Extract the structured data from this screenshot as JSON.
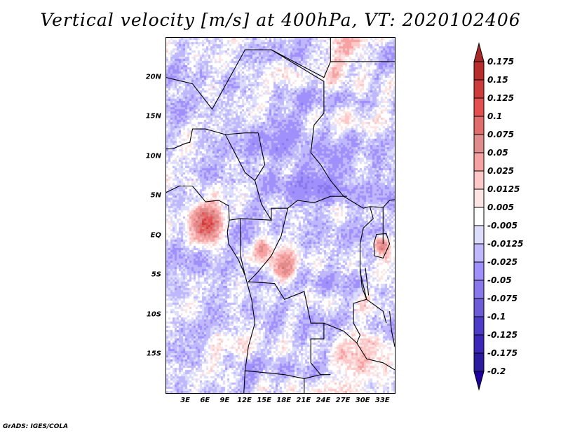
{
  "title": "Vertical velocity [m/s] at 400hPa, VT: 2020102406",
  "footer": "GrADS: IGES/COLA",
  "map": {
    "lon_range": [
      0,
      35
    ],
    "lat_range": [
      -20,
      25
    ],
    "lat_ticks": [
      {
        "value": 20,
        "label": "20N"
      },
      {
        "value": 15,
        "label": "15N"
      },
      {
        "value": 10,
        "label": "10N"
      },
      {
        "value": 5,
        "label": "5N"
      },
      {
        "value": 0,
        "label": "EQ"
      },
      {
        "value": -5,
        "label": "5S"
      },
      {
        "value": -10,
        "label": "10S"
      },
      {
        "value": -15,
        "label": "15S"
      }
    ],
    "lon_ticks": [
      {
        "value": 3,
        "label": "3E"
      },
      {
        "value": 6,
        "label": "6E"
      },
      {
        "value": 9,
        "label": "9E"
      },
      {
        "value": 12,
        "label": "12E"
      },
      {
        "value": 15,
        "label": "15E"
      },
      {
        "value": 18,
        "label": "18E"
      },
      {
        "value": 21,
        "label": "21E"
      },
      {
        "value": 24,
        "label": "24E"
      },
      {
        "value": 27,
        "label": "27E"
      },
      {
        "value": 30,
        "label": "30E"
      },
      {
        "value": 33,
        "label": "33E"
      }
    ]
  },
  "colorbar": {
    "levels": [
      "0.175",
      "0.15",
      "0.125",
      "0.1",
      "0.075",
      "0.05",
      "0.025",
      "0.0125",
      "0.005",
      "-0.005",
      "-0.0125",
      "-0.025",
      "-0.05",
      "-0.075",
      "-0.1",
      "-0.125",
      "-0.175",
      "-0.2"
    ],
    "colors": [
      "#a82828",
      "#b82c2c",
      "#cc3c3c",
      "#e4504f",
      "#e06c6c",
      "#e08c8c",
      "#f6a2a2",
      "#fcc8c8",
      "#fde4e4",
      "#ffffff",
      "#dcdcfc",
      "#c0b8fc",
      "#a090fc",
      "#8878ec",
      "#6c5cd8",
      "#4c3cc8",
      "#3c28b8",
      "#2c1ca0",
      "#2000a0"
    ]
  }
}
